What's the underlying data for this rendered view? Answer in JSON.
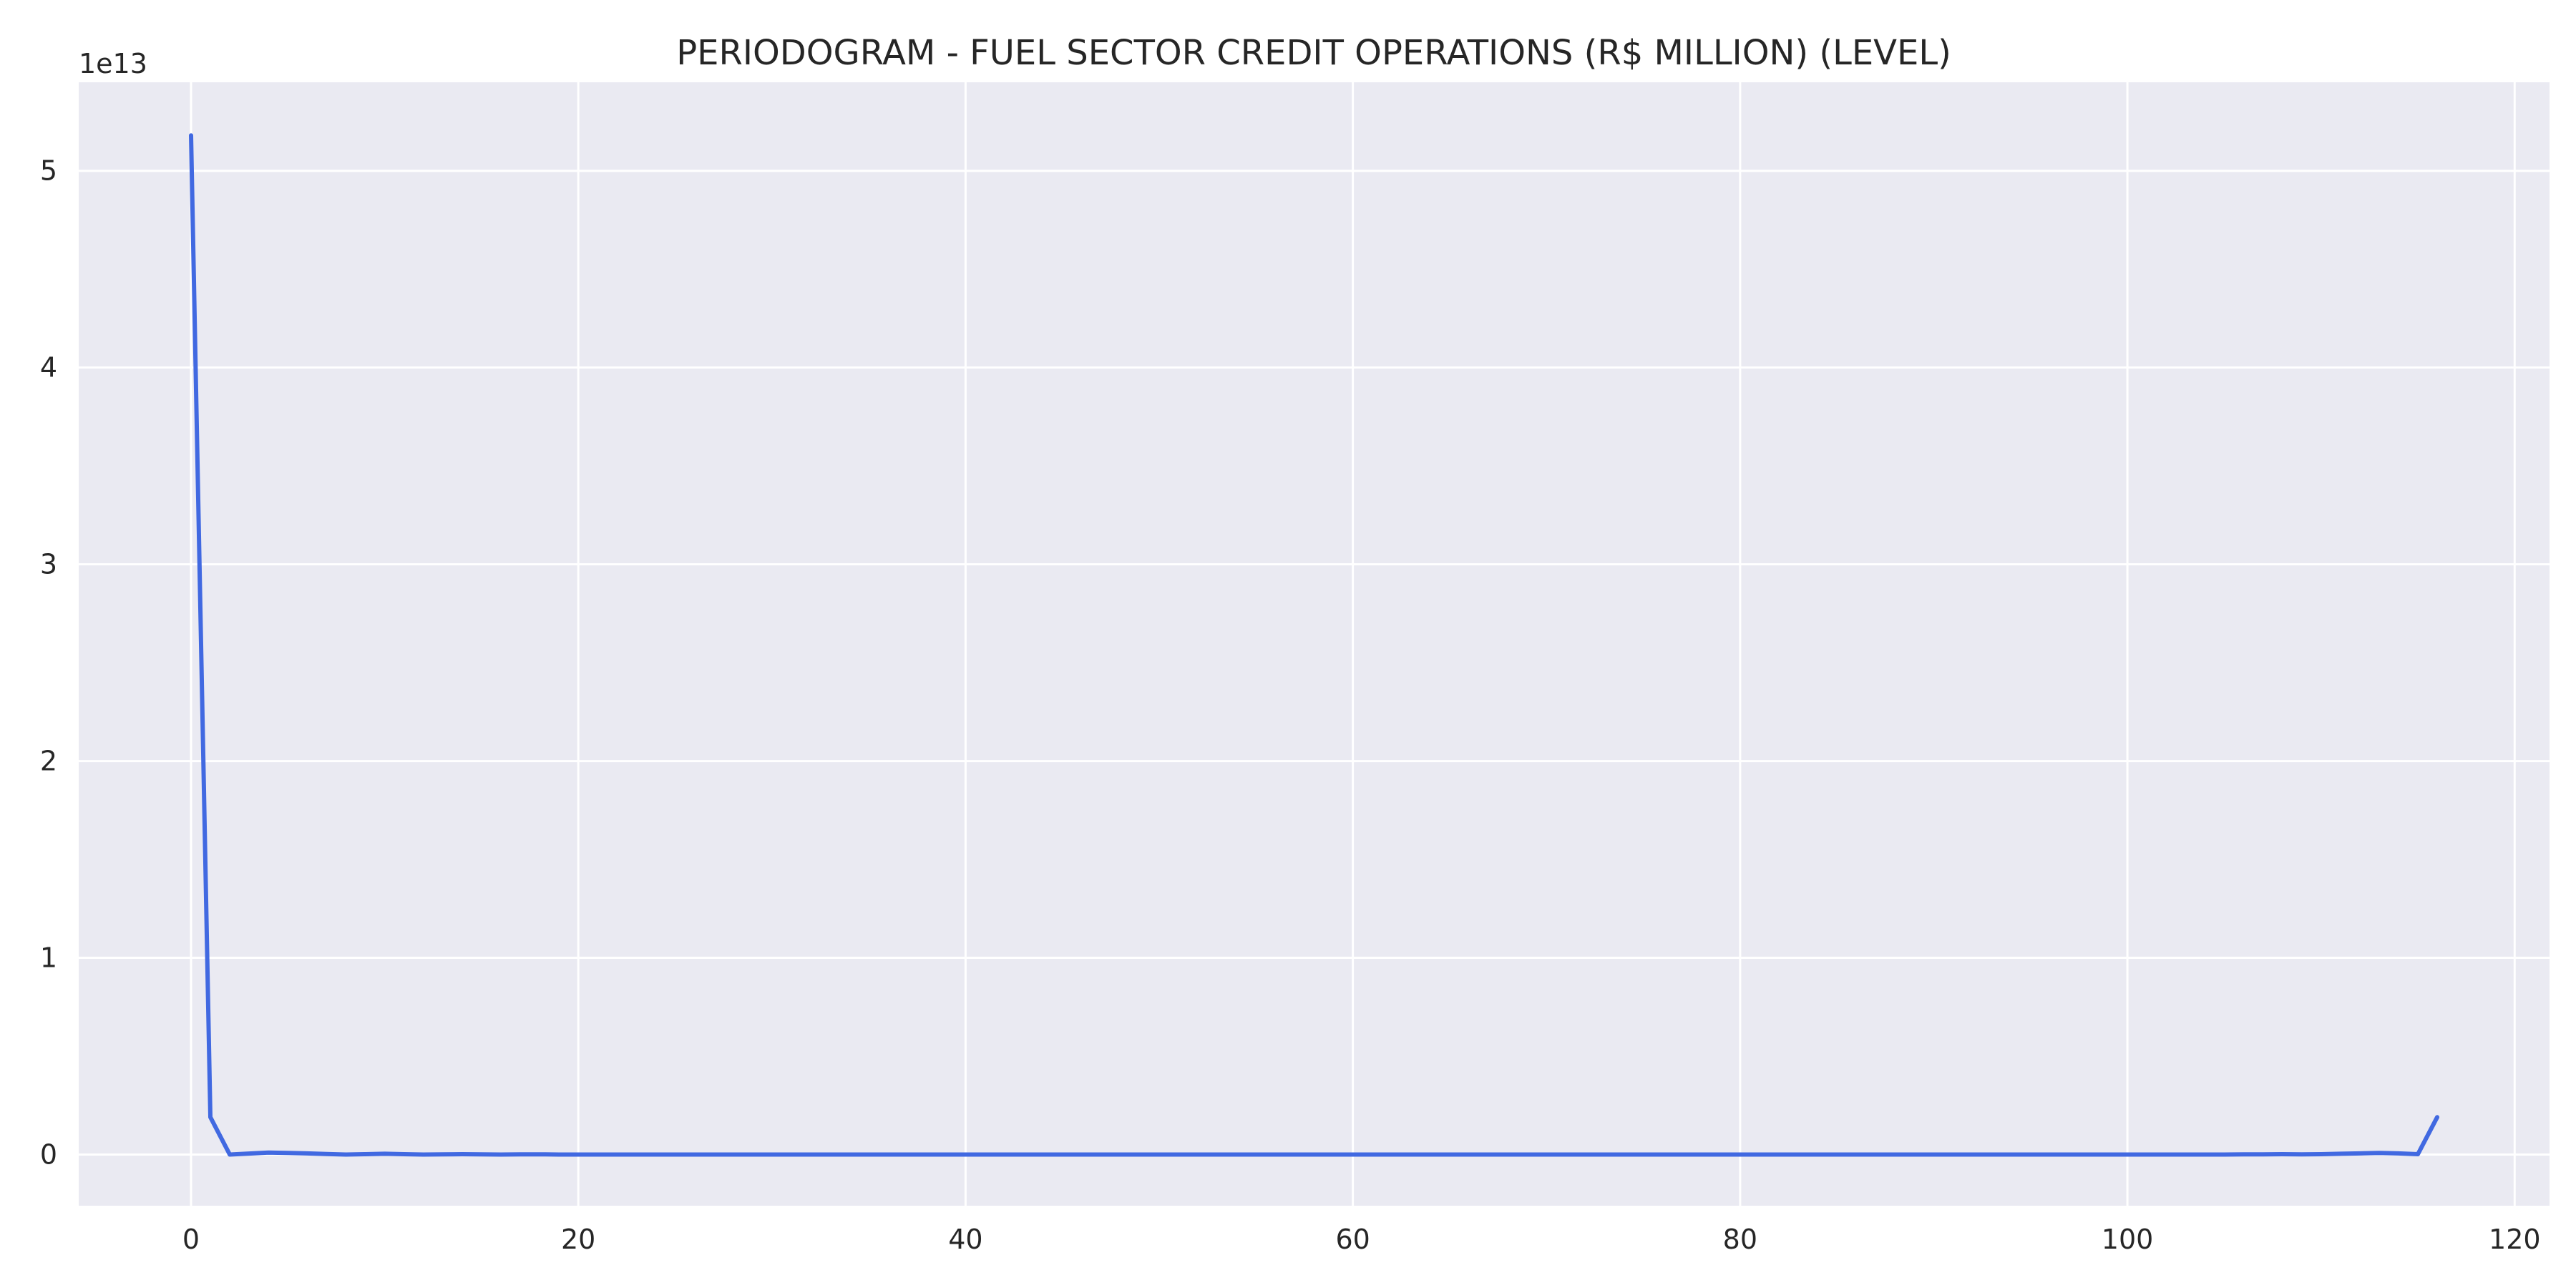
{
  "chart_data": {
    "type": "line",
    "title": "PERIODOGRAM - FUEL SECTOR CREDIT OPERATIONS (R$ MILLION) (LEVEL)",
    "xlabel": "",
    "ylabel": "",
    "y_offset_label": "1e13",
    "xlim": [
      -5.8,
      121.8
    ],
    "ylim": [
      -0.26,
      5.45
    ],
    "x_ticks": [
      0,
      20,
      40,
      60,
      80,
      100,
      120
    ],
    "x_tick_labels": [
      "0",
      "20",
      "40",
      "60",
      "80",
      "100",
      "120"
    ],
    "y_ticks": [
      0,
      1,
      2,
      3,
      4,
      5
    ],
    "y_tick_labels": [
      "0",
      "1",
      "2",
      "3",
      "4",
      "5"
    ],
    "grid": true,
    "legend": "none",
    "series": [
      {
        "color": "#4169e1",
        "x": [
          0,
          1,
          2,
          3,
          4,
          5,
          6,
          7,
          8,
          9,
          10,
          11,
          12,
          13,
          14,
          15,
          16,
          17,
          18,
          19,
          20,
          21,
          22,
          23,
          24,
          25,
          26,
          27,
          28,
          29,
          30,
          31,
          32,
          33,
          34,
          35,
          36,
          37,
          38,
          39,
          40,
          41,
          42,
          43,
          44,
          45,
          46,
          47,
          48,
          49,
          50,
          51,
          52,
          53,
          54,
          55,
          56,
          57,
          58,
          59,
          60,
          61,
          62,
          63,
          64,
          65,
          66,
          67,
          68,
          69,
          70,
          71,
          72,
          73,
          74,
          75,
          76,
          77,
          78,
          79,
          80,
          81,
          82,
          83,
          84,
          85,
          86,
          87,
          88,
          89,
          90,
          91,
          92,
          93,
          94,
          95,
          96,
          97,
          98,
          99,
          100,
          101,
          102,
          103,
          104,
          105,
          106,
          107,
          108,
          109,
          110,
          111,
          112,
          113,
          114,
          115,
          116
        ],
        "y": [
          5.18,
          0.19,
          0.0,
          0.005,
          0.01,
          0.008,
          0.006,
          0.003,
          0.0,
          0.002,
          0.004,
          0.002,
          0.0,
          0.001,
          0.002,
          0.001,
          0.0,
          0.001,
          0.001,
          0.0,
          0.0,
          0.0,
          0.0,
          0.0,
          0.0,
          0.0,
          0.0,
          0.0,
          0.0,
          0.0,
          0.0,
          0.0,
          0.0,
          0.0,
          0.0,
          0.0,
          0.0,
          0.0,
          0.0,
          0.0,
          0.0,
          0.0,
          0.0,
          0.0,
          0.0,
          0.0,
          0.0,
          0.0,
          0.0,
          0.0,
          0.0,
          0.0,
          0.0,
          0.0,
          0.0,
          0.0,
          0.0,
          0.0,
          0.0,
          0.0,
          0.0,
          0.0,
          0.0,
          0.0,
          0.0,
          0.0,
          0.0,
          0.0,
          0.0,
          0.0,
          0.0,
          0.0,
          0.0,
          0.0,
          0.0,
          0.0,
          0.0,
          0.0,
          0.0,
          0.0,
          0.0,
          0.0,
          0.0,
          0.0,
          0.0,
          0.0,
          0.0,
          0.0,
          0.0,
          0.0,
          0.0,
          0.0,
          0.0,
          0.0,
          0.0,
          0.0,
          0.0,
          0.0,
          0.0,
          0.0,
          0.0,
          0.0,
          0.0,
          0.0,
          0.0,
          0.0,
          0.001,
          0.001,
          0.002,
          0.001,
          0.002,
          0.004,
          0.006,
          0.008,
          0.006,
          0.002,
          0.19
        ]
      }
    ]
  }
}
